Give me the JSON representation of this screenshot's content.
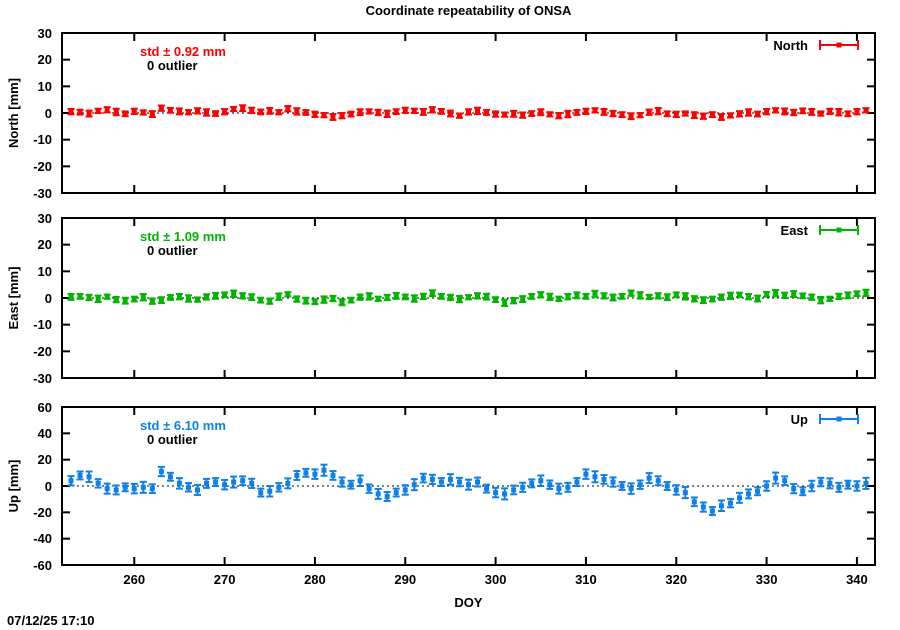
{
  "title": "Coordinate repeatability of ONSA",
  "timestamp": "07/12/25 17:10",
  "xlabel": "DOY",
  "panels": [
    {
      "key": "north",
      "ylabel": "North [mm]",
      "legend": "North",
      "std_label": "std ± 0.92 mm",
      "outlier_label": "0 outlier",
      "color": "#ff0000",
      "yticks": [
        30,
        20,
        10,
        0,
        -10,
        -20,
        -30
      ]
    },
    {
      "key": "east",
      "ylabel": "East [mm]",
      "legend": "East",
      "std_label": "std ± 1.09 mm",
      "outlier_label": "0 outlier",
      "color": "#00b400",
      "yticks": [
        30,
        20,
        10,
        0,
        -10,
        -20,
        -30
      ]
    },
    {
      "key": "up",
      "ylabel": "Up [mm]",
      "legend": "Up",
      "std_label": "std ± 6.10 mm",
      "outlier_label": "0 outlier",
      "color": "#0f80e8",
      "yticks": [
        60,
        40,
        20,
        0,
        -20,
        -40,
        -60
      ]
    }
  ],
  "chart_data": {
    "type": "scatter",
    "marker": "filled-square-with-errorbars",
    "title": "Coordinate repeatability of ONSA",
    "xlabel": "DOY",
    "x_range": [
      252,
      342
    ],
    "x_ticks": [
      260,
      270,
      280,
      290,
      300,
      310,
      320,
      330,
      340
    ],
    "grid": false,
    "zero_line": "dotted",
    "legend_position": "top-right-inside",
    "x": [
      253,
      254,
      255,
      256,
      257,
      258,
      259,
      260,
      261,
      262,
      263,
      264,
      265,
      266,
      267,
      268,
      269,
      270,
      271,
      272,
      273,
      274,
      275,
      276,
      277,
      278,
      279,
      280,
      281,
      282,
      283,
      284,
      285,
      286,
      287,
      288,
      289,
      290,
      291,
      292,
      293,
      294,
      295,
      296,
      297,
      298,
      299,
      300,
      301,
      302,
      303,
      304,
      305,
      306,
      307,
      308,
      309,
      310,
      311,
      312,
      313,
      314,
      315,
      316,
      317,
      318,
      319,
      320,
      321,
      322,
      323,
      324,
      325,
      326,
      327,
      328,
      329,
      330,
      331,
      332,
      333,
      334,
      335,
      336,
      337,
      338,
      339,
      340,
      341
    ],
    "series": [
      {
        "name": "North",
        "units": "mm",
        "std_mm": 0.92,
        "outliers": 0,
        "ylim": [
          -30,
          30
        ],
        "ytick_step": 10,
        "values": [
          0.5,
          0.3,
          -0.2,
          0.8,
          1.2,
          0.4,
          -0.3,
          0.6,
          0.2,
          -0.4,
          1.8,
          1.0,
          0.6,
          0.3,
          0.8,
          0.2,
          -0.2,
          0.5,
          1.5,
          1.8,
          1.0,
          0.4,
          0.8,
          0.3,
          1.6,
          0.6,
          0.2,
          -0.5,
          -0.8,
          -1.5,
          -1.0,
          -0.4,
          0.3,
          0.6,
          0.2,
          -0.3,
          0.5,
          1.0,
          0.8,
          0.4,
          1.2,
          0.6,
          -0.2,
          -1.0,
          0.4,
          0.8,
          0.2,
          -0.4,
          -0.6,
          -0.3,
          -0.8,
          -0.2,
          0.3,
          -0.5,
          -1.0,
          -0.4,
          0.2,
          0.6,
          1.0,
          0.4,
          -0.2,
          -0.6,
          -1.2,
          -0.8,
          0.3,
          0.7,
          -0.3,
          -0.5,
          -0.2,
          -0.8,
          -1.2,
          -0.6,
          -1.5,
          -0.9,
          -0.3,
          0.2,
          -0.4,
          0.5,
          1.0,
          0.6,
          0.2,
          0.8,
          0.4,
          -0.2,
          0.6,
          0.3,
          -0.3,
          0.5,
          1.0
        ],
        "errors": [
          1.0,
          0.9,
          1.1,
          0.8,
          1.0,
          1.2,
          0.9,
          1.0,
          0.8,
          1.1,
          1.0,
          0.9,
          1.1,
          0.8,
          1.0,
          1.2,
          0.9,
          1.0,
          0.8,
          1.1,
          1.0,
          0.9,
          1.1,
          0.8,
          1.0,
          1.2,
          0.9,
          1.0,
          0.8,
          1.1,
          1.0,
          0.9,
          1.1,
          0.8,
          1.0,
          1.2,
          0.9,
          1.0,
          0.8,
          1.1,
          1.0,
          0.9,
          1.1,
          0.8,
          1.0,
          1.2,
          0.9,
          1.0,
          0.8,
          1.1,
          1.0,
          0.9,
          1.1,
          0.8,
          1.0,
          1.2,
          0.9,
          1.0,
          0.8,
          1.1,
          1.0,
          0.9,
          1.1,
          0.8,
          1.0,
          1.2,
          0.9,
          1.0,
          0.8,
          1.1,
          1.0,
          0.9,
          1.1,
          0.8,
          1.0,
          1.2,
          0.9,
          1.0,
          0.8,
          1.1,
          1.0,
          0.9,
          1.1,
          0.8,
          1.0,
          1.2,
          0.9,
          1.0,
          0.8
        ]
      },
      {
        "name": "East",
        "units": "mm",
        "std_mm": 1.09,
        "outliers": 0,
        "ylim": [
          -30,
          30
        ],
        "ytick_step": 10,
        "values": [
          0.4,
          0.6,
          0.2,
          -0.3,
          0.5,
          -0.6,
          -1.0,
          -0.4,
          0.3,
          -1.2,
          -0.8,
          0.2,
          0.5,
          -0.2,
          -0.6,
          0.4,
          0.8,
          1.2,
          1.6,
          0.8,
          0.3,
          -0.8,
          -1.2,
          0.5,
          1.4,
          -0.4,
          -1.0,
          -1.4,
          -0.6,
          -0.2,
          -1.6,
          -0.8,
          0.3,
          0.6,
          -0.3,
          0.2,
          0.8,
          0.4,
          -0.2,
          0.6,
          1.8,
          0.6,
          0.2,
          -0.4,
          0.3,
          0.8,
          0.5,
          -0.6,
          -1.8,
          -1.0,
          -0.4,
          0.6,
          1.2,
          0.4,
          -0.3,
          0.5,
          1.0,
          0.6,
          1.5,
          0.8,
          0.2,
          0.6,
          1.8,
          1.0,
          0.4,
          0.8,
          0.3,
          1.2,
          0.6,
          -0.3,
          -0.8,
          -0.4,
          0.3,
          0.8,
          1.2,
          0.5,
          -0.2,
          1.4,
          1.8,
          1.0,
          1.5,
          0.8,
          0.3,
          -0.8,
          -0.3,
          0.6,
          1.0,
          1.6,
          1.9
        ],
        "errors": [
          1.1,
          0.9,
          1.0,
          1.2,
          0.8,
          1.0,
          1.1,
          0.9,
          1.2,
          1.0,
          1.1,
          0.9,
          1.0,
          1.2,
          0.8,
          1.0,
          1.1,
          0.9,
          1.2,
          1.0,
          1.1,
          0.9,
          1.0,
          1.2,
          0.8,
          1.0,
          1.1,
          0.9,
          1.2,
          1.0,
          1.1,
          0.9,
          1.0,
          1.2,
          0.8,
          1.0,
          1.1,
          0.9,
          1.2,
          1.0,
          1.1,
          0.9,
          1.0,
          1.2,
          0.8,
          1.0,
          1.1,
          0.9,
          1.2,
          1.0,
          1.1,
          0.9,
          1.0,
          1.2,
          0.8,
          1.0,
          1.1,
          0.9,
          1.2,
          1.0,
          1.1,
          0.9,
          1.0,
          1.2,
          0.8,
          1.0,
          1.1,
          0.9,
          1.2,
          1.0,
          1.1,
          0.9,
          1.0,
          1.2,
          0.8,
          1.0,
          1.1,
          0.9,
          1.2,
          1.0,
          1.1,
          0.9,
          1.0,
          1.2,
          0.8,
          1.0,
          1.1,
          0.9,
          1.2
        ]
      },
      {
        "name": "Up",
        "units": "mm",
        "std_mm": 6.1,
        "outliers": 0,
        "ylim": [
          -60,
          60
        ],
        "ytick_step": 20,
        "values": [
          4,
          8,
          7,
          2,
          -2,
          -3,
          -1,
          -2,
          -1,
          -2,
          11,
          7,
          2,
          -1,
          -3,
          2,
          3,
          1,
          3,
          4,
          2,
          -5,
          -4,
          -1,
          2,
          8,
          10,
          9,
          12,
          8,
          3,
          1,
          4,
          -2,
          -6,
          -8,
          -5,
          -3,
          1,
          6,
          5,
          3,
          5,
          3,
          1,
          3,
          -2,
          -5,
          -6,
          -3,
          -1,
          2,
          4,
          1,
          -2,
          -1,
          3,
          9,
          7,
          5,
          3,
          0,
          -2,
          1,
          6,
          4,
          0,
          -3,
          -5,
          -12,
          -16,
          -19,
          -15,
          -13,
          -9,
          -6,
          -4,
          0,
          6,
          4,
          -2,
          -4,
          0,
          3,
          2,
          -1,
          1,
          0,
          2
        ],
        "errors": [
          3.5,
          3.0,
          4.0,
          3.2,
          3.8,
          3.4,
          3.0,
          3.6,
          4.2,
          3.3,
          3.5,
          3.0,
          4.0,
          3.2,
          3.8,
          3.4,
          3.0,
          3.6,
          4.2,
          3.3,
          3.5,
          3.0,
          4.0,
          3.2,
          3.8,
          3.4,
          3.0,
          3.6,
          4.2,
          3.3,
          3.5,
          3.0,
          4.0,
          3.2,
          3.8,
          3.4,
          3.0,
          3.6,
          4.2,
          3.3,
          3.5,
          3.0,
          4.0,
          3.2,
          3.8,
          3.4,
          3.0,
          3.6,
          4.2,
          3.3,
          3.5,
          3.0,
          4.0,
          3.2,
          3.8,
          3.4,
          3.0,
          3.6,
          4.2,
          3.3,
          3.5,
          3.0,
          4.0,
          3.2,
          3.8,
          3.4,
          3.0,
          3.6,
          4.2,
          3.3,
          3.5,
          3.0,
          4.0,
          3.2,
          3.8,
          3.4,
          3.0,
          3.6,
          4.2,
          3.3,
          3.5,
          3.0,
          4.0,
          3.2,
          3.8,
          3.4,
          3.0,
          3.6,
          4.2
        ]
      }
    ]
  }
}
